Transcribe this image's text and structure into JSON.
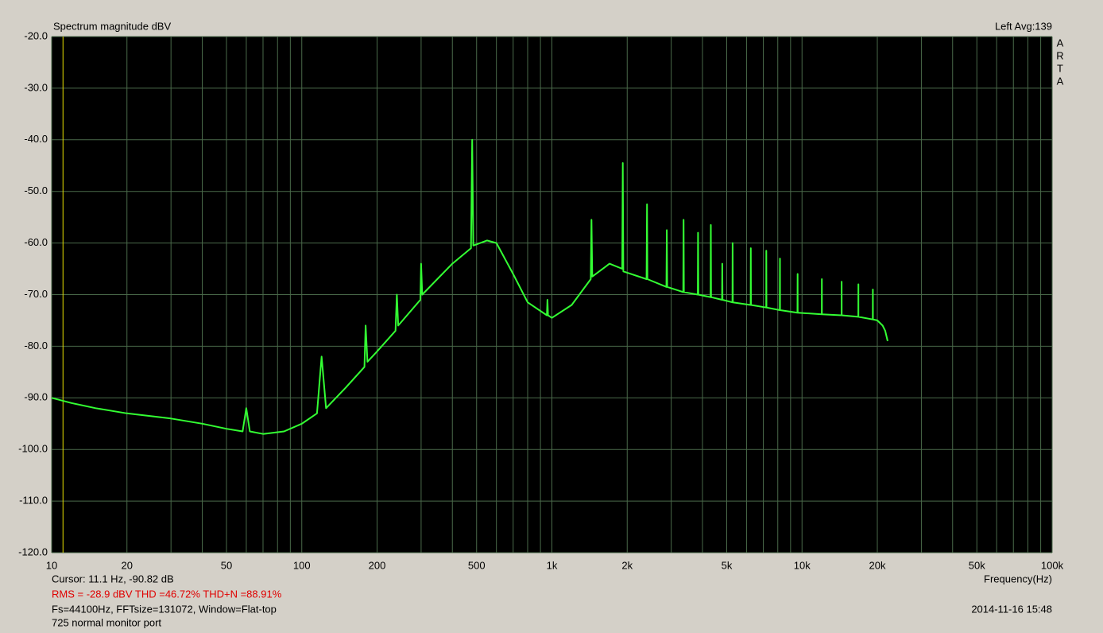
{
  "chart_data": {
    "type": "line",
    "title": "Spectrum magnitude dBV",
    "channel": "Left  Avg:139",
    "brand": "ARTA",
    "x_label": "Frequency(Hz)",
    "cursor": {
      "x": 11.1,
      "label": "Cursor:    11.1 Hz, -90.82 dB"
    },
    "stats": "RMS =  -28.9 dBV   THD =46.72%   THD+N =88.91%",
    "settings": "Fs=44100Hz, FFTsize=131072, Window=Flat-top",
    "note": "725 normal monitor port",
    "timestamp": "2014-11-16  15:48",
    "x_scale": "log",
    "grid": true,
    "xlim": [
      10,
      100000
    ],
    "ylim": [
      -120,
      -20
    ],
    "xticks": [
      10,
      20,
      50,
      100,
      200,
      500,
      {
        "value": 1000,
        "label": "1k"
      },
      {
        "value": 2000,
        "label": "2k"
      },
      {
        "value": 5000,
        "label": "5k"
      },
      {
        "value": 10000,
        "label": "10k"
      },
      {
        "value": 20000,
        "label": "20k"
      },
      {
        "value": 50000,
        "label": "50k"
      },
      {
        "value": 100000,
        "label": "100k"
      }
    ],
    "xminor": [
      30,
      40,
      60,
      70,
      80,
      90,
      300,
      400,
      600,
      700,
      800,
      900,
      3000,
      4000,
      6000,
      7000,
      8000,
      9000,
      30000,
      40000,
      60000,
      70000,
      80000,
      90000
    ],
    "yticks": [
      {
        "value": -20,
        "label": "-20.0"
      },
      {
        "value": -30,
        "label": "-30.0"
      },
      {
        "value": -40,
        "label": "-40.0"
      },
      {
        "value": -50,
        "label": "-50.0"
      },
      {
        "value": -60,
        "label": "-60.0"
      },
      {
        "value": -70,
        "label": "-70.0"
      },
      {
        "value": -80,
        "label": "-80.0"
      },
      {
        "value": -90,
        "label": "-90.0"
      },
      {
        "value": -100,
        "label": "-100.0"
      },
      {
        "value": -110,
        "label": "-110.0"
      },
      {
        "value": -120,
        "label": "-120.0"
      }
    ],
    "series": [
      {
        "color": "#33ff33",
        "x": [
          10,
          12,
          15,
          20,
          30,
          40,
          50,
          58,
          60,
          62,
          70,
          85,
          100,
          115,
          120,
          125,
          150,
          178,
          180,
          183,
          200,
          237,
          240,
          243,
          298,
          300,
          303,
          400,
          475,
          480,
          485,
          550,
          600,
          700,
          800,
          955,
          960,
          965,
          1000,
          1200,
          1430,
          1440,
          1450,
          1700,
          1910,
          1920,
          1930,
          2390,
          2400,
          2410,
          2870,
          2880,
          2890,
          3350,
          3360,
          3370,
          3830,
          3840,
          3850,
          4310,
          4320,
          4330,
          4790,
          4800,
          4810,
          5270,
          5280,
          5290,
          6230,
          6240,
          6250,
          7190,
          7200,
          7210,
          8150,
          8160,
          8170,
          9590,
          9600,
          9610,
          11990,
          12000,
          12010,
          14390,
          14400,
          14410,
          16790,
          16800,
          16810,
          19190,
          19200,
          19210,
          20000,
          21000,
          21500,
          22000
        ],
        "values": [
          -90,
          -91,
          -92,
          -93,
          -94,
          -95,
          -96,
          -96.5,
          -92,
          -96.5,
          -97,
          -96.5,
          -95,
          -93,
          -82,
          -92,
          -88,
          -84,
          -76,
          -83,
          -81,
          -77,
          -70,
          -76,
          -71,
          -64,
          -70,
          -64,
          -61,
          -40,
          -60.5,
          -59.5,
          -60,
          -66,
          -71.5,
          -74,
          -71,
          -74,
          -74.5,
          -72,
          -67,
          -55.5,
          -66.5,
          -64,
          -65,
          -44.5,
          -65.5,
          -67,
          -52.5,
          -67,
          -68.5,
          -57.5,
          -68.5,
          -69.5,
          -55.5,
          -69.5,
          -70,
          -58,
          -70,
          -70.5,
          -56.5,
          -70.5,
          -71,
          -64,
          -71,
          -71.5,
          -60,
          -71.5,
          -72,
          -61,
          -72,
          -72.5,
          -61.5,
          -72.5,
          -73,
          -63,
          -73,
          -73.5,
          -66,
          -73.5,
          -73.8,
          -67,
          -73.8,
          -74,
          -67.5,
          -74,
          -74.3,
          -68,
          -74.3,
          -74.8,
          -69,
          -74.8,
          -75,
          -76,
          -77,
          -79
        ]
      }
    ]
  }
}
